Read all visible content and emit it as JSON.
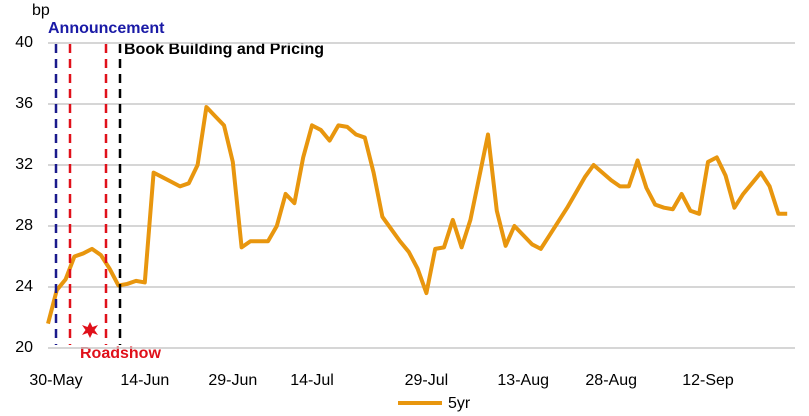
{
  "chart_data": {
    "type": "line",
    "y_unit": "bp",
    "annotations": [
      "Announcement",
      "Book Building and Pricing",
      "Roadshow"
    ],
    "categories": [
      "30-May",
      null,
      null,
      null,
      null,
      null,
      null,
      null,
      null,
      null,
      null,
      "14-Jun",
      null,
      null,
      null,
      null,
      null,
      null,
      null,
      null,
      null,
      "29-Jun",
      null,
      null,
      null,
      null,
      null,
      null,
      null,
      null,
      "14-Jul",
      null,
      null,
      null,
      null,
      null,
      null,
      null,
      null,
      null,
      null,
      null,
      null,
      "29-Jul",
      null,
      null,
      null,
      null,
      null,
      null,
      null,
      null,
      null,
      null,
      "13-Aug",
      null,
      null,
      null,
      null,
      null,
      null,
      null,
      null,
      null,
      "28-Aug",
      null,
      null,
      null,
      null,
      null,
      null,
      null,
      null,
      null,
      null,
      "12-Sep",
      null,
      null,
      null,
      null,
      null,
      null,
      null,
      null,
      null
    ],
    "series": [
      {
        "name": "5yr",
        "color": "#e8960e",
        "values": [
          21.6,
          23.8,
          24.5,
          26.0,
          26.2,
          26.5,
          26.1,
          25.2,
          24.1,
          24.2,
          24.4,
          24.3,
          31.5,
          31.2,
          30.9,
          30.6,
          30.8,
          32.0,
          35.8,
          35.2,
          34.6,
          32.2,
          26.6,
          27.0,
          27.0,
          27.0,
          28.0,
          30.1,
          29.5,
          32.5,
          34.6,
          34.3,
          33.6,
          34.6,
          34.5,
          34.0,
          33.8,
          31.5,
          28.6,
          27.8,
          27.0,
          26.3,
          25.2,
          23.6,
          26.5,
          26.6,
          28.4,
          26.6,
          28.4,
          31.2,
          34.0,
          29.0,
          26.7,
          28.0,
          27.4,
          26.8,
          26.5,
          27.4,
          28.3,
          29.2,
          30.2,
          31.2,
          32.0,
          31.5,
          31.0,
          30.6,
          30.6,
          32.3,
          30.5,
          29.4,
          29.2,
          29.1,
          30.1,
          29.0,
          28.8,
          32.2,
          32.5,
          31.3,
          29.2,
          30.1,
          30.8,
          31.5,
          30.6,
          28.8,
          28.8
        ]
      }
    ],
    "ylim": [
      20,
      40
    ],
    "yticks": [
      20,
      24,
      28,
      32,
      36,
      40
    ],
    "grid": true,
    "legend": "bottom"
  }
}
